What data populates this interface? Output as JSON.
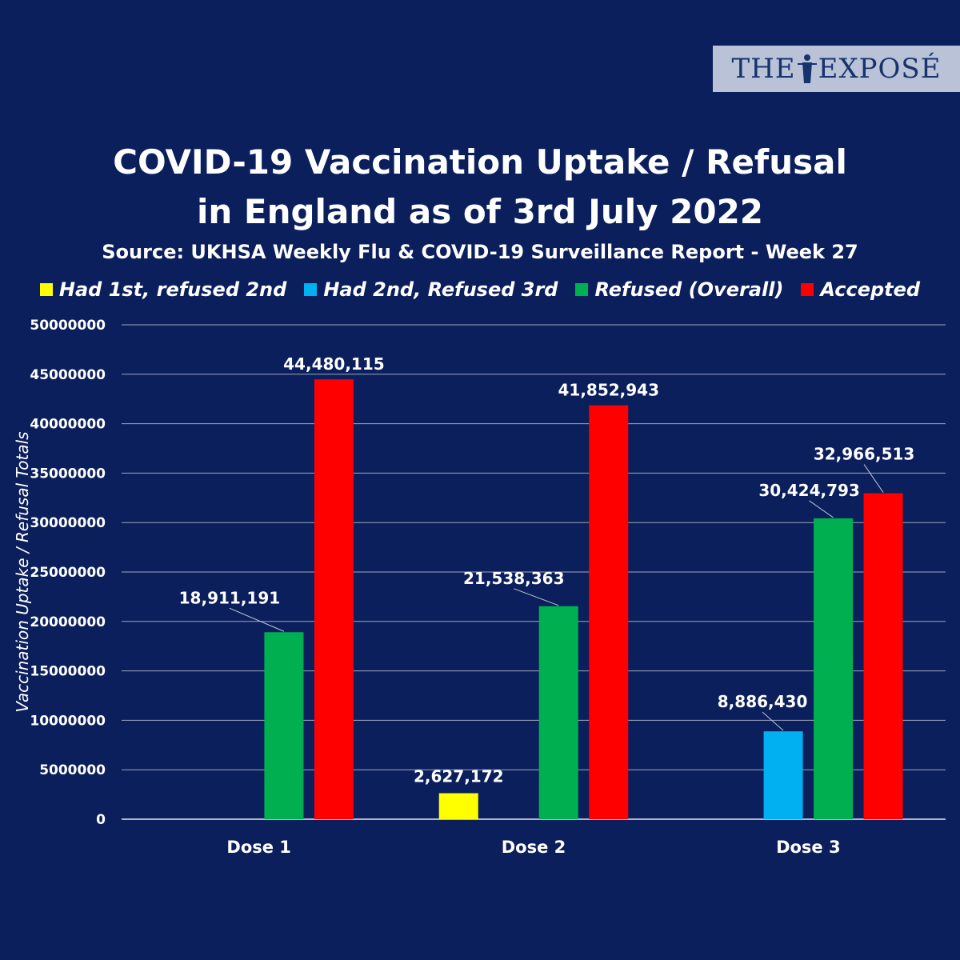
{
  "logo": {
    "text_left": "THE",
    "text_right": "EXPOSÉ"
  },
  "chart_data": {
    "type": "bar",
    "title_line1": "COVID-19 Vaccination Uptake / Refusal",
    "title_line2": "in England as of 3rd July 2022",
    "subtitle": "Source: UKHSA Weekly Flu & COVID-19 Surveillance Report - Week 27",
    "xlabel": "",
    "ylabel": "Vaccination Uptake / Refusal Totals",
    "ylim": [
      0,
      50000000
    ],
    "yticks": [
      "0",
      "5000000",
      "10000000",
      "15000000",
      "20000000",
      "25000000",
      "30000000",
      "35000000",
      "40000000",
      "45000000",
      "50000000"
    ],
    "grid": true,
    "legend_position": "top",
    "categories": [
      "Dose 1",
      "Dose 2",
      "Dose 3"
    ],
    "series": [
      {
        "name": "Had 1st, refused 2nd",
        "color": "#ffff00",
        "values": [
          null,
          2627172,
          null
        ],
        "labels": [
          "",
          "2,627,172",
          ""
        ]
      },
      {
        "name": "Had 2nd, Refused 3rd",
        "color": "#00b0f0",
        "values": [
          null,
          null,
          8886430
        ],
        "labels": [
          "",
          "",
          "8,886,430"
        ]
      },
      {
        "name": "Refused (Overall)",
        "color": "#00b050",
        "values": [
          18911191,
          21538363,
          30424793
        ],
        "labels": [
          "18,911,191",
          "21,538,363",
          "30,424,793"
        ]
      },
      {
        "name": "Accepted",
        "color": "#ff0000",
        "values": [
          44480115,
          41852943,
          32966513
        ],
        "labels": [
          "44,480,115",
          "41,852,943",
          "32,966,513"
        ]
      }
    ]
  }
}
